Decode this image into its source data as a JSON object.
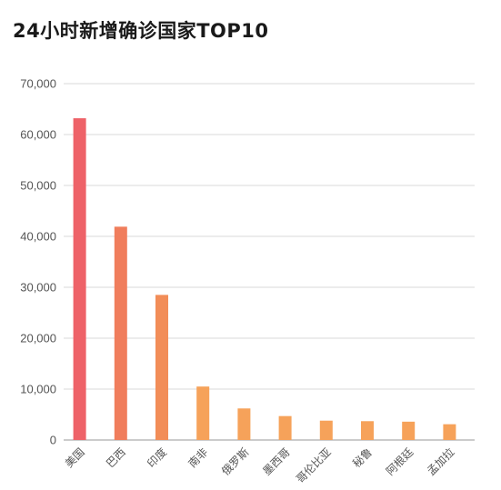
{
  "chart_data": {
    "type": "bar",
    "title": "24小时新增确诊国家TOP10",
    "xlabel": "",
    "ylabel": "",
    "categories": [
      "美国",
      "巴西",
      "印度",
      "南非",
      "俄罗斯",
      "墨西哥",
      "哥伦比亚",
      "秘鲁",
      "阿根廷",
      "孟加拉"
    ],
    "values": [
      63200,
      41900,
      28500,
      10500,
      6200,
      4700,
      3800,
      3700,
      3600,
      3100
    ],
    "ylim": [
      0,
      70000
    ],
    "yticks": [
      0,
      10000,
      20000,
      30000,
      40000,
      50000,
      60000,
      70000
    ],
    "ytick_labels": [
      "0",
      "10,000",
      "20,000",
      "30,000",
      "40,000",
      "50,000",
      "60,000",
      "70,000"
    ],
    "grid": true,
    "legend": "none",
    "bar_colors": [
      "#ee6268",
      "#f07d5c",
      "#f28d58",
      "#f6a25a",
      "#f6a25a",
      "#f6a25a",
      "#f6a25a",
      "#f6a25a",
      "#f6a25a",
      "#f6a25a"
    ]
  }
}
